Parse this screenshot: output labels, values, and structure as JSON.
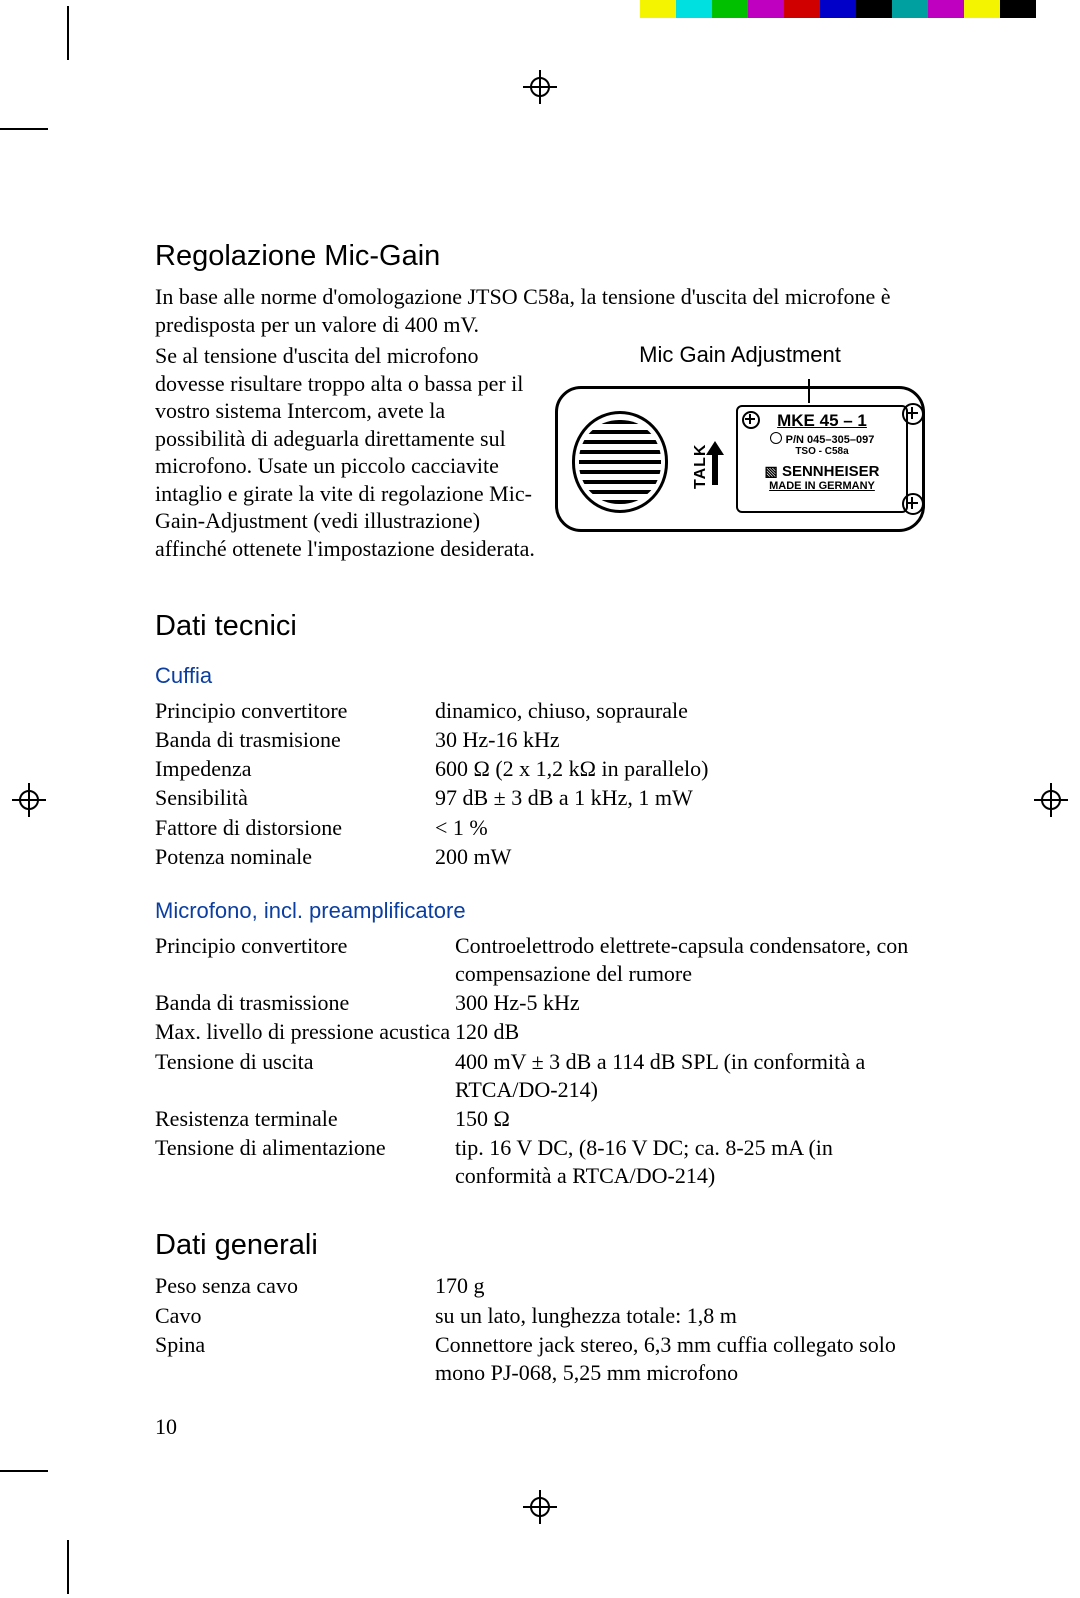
{
  "colorbar": [
    "#ffffff",
    "#f4f400",
    "#00e0e0",
    "#00c000",
    "#c000c0",
    "#d00000",
    "#0000c8",
    "#000000",
    "#00a0a0",
    "#c000c0",
    "#f4f400",
    "#000000"
  ],
  "headings": {
    "h_micgain": "Regolazione Mic-Gain",
    "h_dati": "Dati tecnici",
    "h_cuffia": "Cuffia",
    "h_micpre": "Microfono, incl. preamplificatore",
    "h_gen": "Dati generali"
  },
  "paras": {
    "p1": "In base alle norme d'omologazione JTSO C58a, la tensione d'uscita del microfone è predisposta per un valore di 400 mV.",
    "p2": "Se al tensione d'uscita del microfono dovesse risultare troppo alta o bassa per il vostro sistema Intercom, avete la possibilità di adeguarla direttamente sul microfono. Usate un piccolo cacciavite intaglio e girate la vite di regolazione Mic-Gain-Adjustment (vedi illustrazione) affinché ottenete l'impostazione desiderata."
  },
  "figure": {
    "caption": "Mic Gain Adjustment",
    "talk": "TALK",
    "model": "MKE 45 – 1",
    "pn": "P/N  045–305–097",
    "tso": "TSO - C58a",
    "brand": "SENNHEISER",
    "made": "MADE IN GERMANY"
  },
  "cuffia": [
    [
      "Principio convertitore",
      "dinamico, chiuso, sopraurale"
    ],
    [
      "Banda di trasmisione",
      "30 Hz-16 kHz"
    ],
    [
      "Impedenza",
      "600 Ω  (2 x 1,2 kΩ in parallelo)"
    ],
    [
      "Sensibilità",
      "97 dB ± 3 dB a 1 kHz, 1 mW"
    ],
    [
      "Fattore di distorsione",
      "< 1 %"
    ],
    [
      "Potenza nominale",
      "200 mW"
    ]
  ],
  "micpre": [
    [
      "Principio convertitore",
      "Controelettrodo elettrete-capsula condensatore, con compensazione del rumore"
    ],
    [
      "Banda di trasmissione",
      "300 Hz-5 kHz"
    ],
    [
      "Max. livello di pressione acustica",
      "120 dB"
    ],
    [
      "Tensione di uscita",
      "400 mV ± 3 dB a 114 dB SPL (in conformità a RTCA/DO-214)"
    ],
    [
      "Resistenza terminale",
      "150 Ω"
    ],
    [
      "Tensione di alimentazione",
      "tip. 16 V DC, (8-16 V DC; ca. 8-25 mA (in conformità a RTCA/DO-214)"
    ]
  ],
  "micpre_col1_width": 300,
  "gen": [
    [
      "Peso senza cavo",
      "170 g"
    ],
    [
      "Cavo",
      "su un lato, lunghezza totale: 1,8 m"
    ],
    [
      "Spina",
      "Connettore jack stereo, 6,3 mm cuffia collegato solo mono PJ-068, 5,25 mm microfono"
    ]
  ],
  "page_number": "10"
}
